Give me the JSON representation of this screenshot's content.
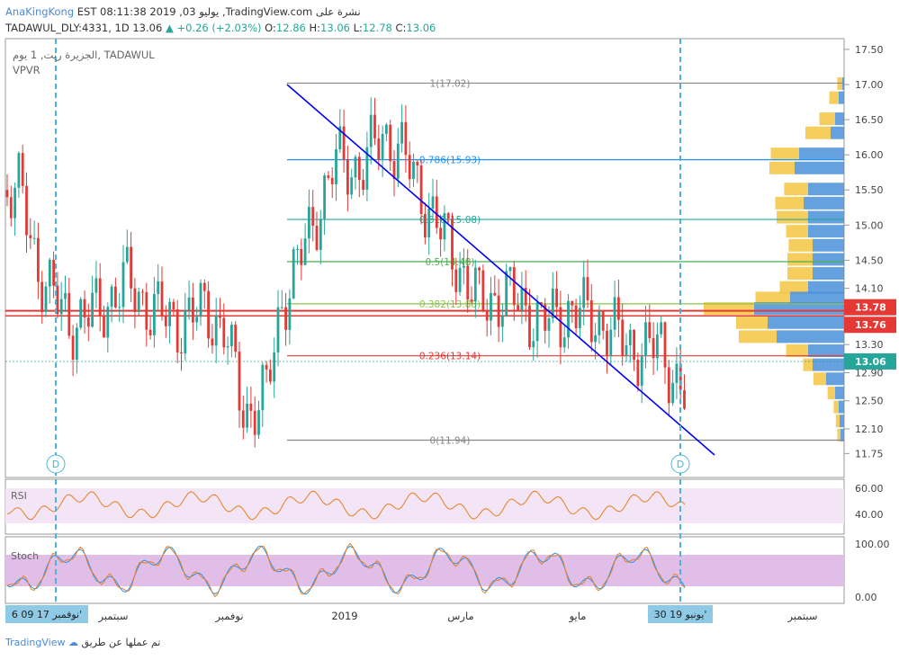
{
  "header": {
    "line1_left": "AnaKingKong",
    "line1_right": "EST 08:11:38 2019 ,يوليو 03 ,TradingView.com نشرة على",
    "symbol": "TADAWUL_DLY:4331, 1D",
    "last": "13.06",
    "change": "+0.26 (+2.03%)",
    "ohlc_labels": [
      "O:",
      "H:",
      "L:",
      "C:"
    ],
    "ohlc_values": [
      "12.86",
      "13.06",
      "12.78",
      "13.06"
    ]
  },
  "legend": {
    "title": "الجزيرة ريت, 1 يوم, TADAWUL",
    "indicator": "VPVR"
  },
  "price_axis": {
    "ticks": [
      "17.50",
      "17.00",
      "16.50",
      "16.00",
      "15.50",
      "15.00",
      "14.50",
      "14.10",
      "13.30",
      "12.90",
      "12.50",
      "12.10",
      "11.75"
    ],
    "badges": [
      {
        "label": "13.78",
        "color": "#e53935"
      },
      {
        "label": "13.76",
        "color": "#e53935"
      },
      {
        "label": "13.06",
        "color": "#26a69a"
      }
    ]
  },
  "fib_labels": [
    "1(17.02)",
    "0.786(15.93)",
    "0.618(15.08)",
    "0.5(14.48)",
    "0.382(13.88)",
    "0.236(13.14)",
    "0(11.94)"
  ],
  "rsi": {
    "label": "RSI",
    "ticks": [
      "60.00",
      "40.00"
    ]
  },
  "stoch": {
    "label": "Stoch",
    "ticks": [
      "100.00",
      "0.00"
    ]
  },
  "time_axis": {
    "labels": [
      "سبتمبر",
      "نوفمبر",
      "2019",
      "مارس",
      "مايو",
      "سبتمبر"
    ],
    "badge_left": "6 09 نوفمبر 17'",
    "badge_right": "30 يونيو 19'"
  },
  "markers": [
    "D",
    "D"
  ],
  "footer": {
    "brand": "TradingView",
    "text": "تم عملها عن طريق"
  },
  "colors": {
    "up": "#26a69a",
    "down": "#e53935",
    "fib_blue": "#2196f3",
    "fib_green": "#26a69a",
    "trend": "#0000ff",
    "rsi": "#e67e22",
    "rsi_bg": "#f3e5f5",
    "stoch_bg": "#e1bee7"
  },
  "chart_data": {
    "type": "candlestick",
    "symbol": "TADAWUL_DLY:4331",
    "interval": "1D",
    "ylim": [
      11.6,
      17.7
    ],
    "x_range": [
      "2017-08-01",
      "2019-10-20"
    ],
    "ohlc_trend": [
      [
        "2017-08-15",
        15.5
      ],
      [
        "2017-09-01",
        14.4
      ],
      [
        "2017-10-01",
        13.6
      ],
      [
        "2017-11-01",
        13.8
      ],
      [
        "2017-11-25",
        14.2
      ],
      [
        "2017-12-20",
        13.8
      ],
      [
        "2018-01-15",
        13.6
      ],
      [
        "2018-02-10",
        13.8
      ],
      [
        "2018-03-01",
        13.5
      ],
      [
        "2018-03-20",
        12.3
      ],
      [
        "2018-04-10",
        12.6
      ],
      [
        "2018-04-25",
        13.9
      ],
      [
        "2018-05-20",
        14.8
      ],
      [
        "2018-06-15",
        15.9
      ],
      [
        "2018-07-10",
        15.8
      ],
      [
        "2018-08-01",
        16.3
      ],
      [
        "2018-08-20",
        16.0
      ],
      [
        "2018-09-15",
        15.2
      ],
      [
        "2018-10-10",
        14.5
      ],
      [
        "2018-11-01",
        13.9
      ],
      [
        "2018-12-01",
        14.0
      ],
      [
        "2019-01-01",
        13.6
      ],
      [
        "2019-02-01",
        13.8
      ],
      [
        "2019-03-01",
        13.6
      ],
      [
        "2019-03-25",
        13.3
      ],
      [
        "2019-04-10",
        13.2
      ],
      [
        "2019-04-25",
        13.3
      ],
      [
        "2019-05-10",
        12.8
      ],
      [
        "2019-05-25",
        12.4
      ],
      [
        "2019-06-10",
        12.0
      ],
      [
        "2019-06-20",
        12.4
      ],
      [
        "2019-06-30",
        12.9
      ],
      [
        "2019-07-03",
        13.06
      ]
    ],
    "fibonacci": [
      {
        "level": 1,
        "price": 17.02
      },
      {
        "level": 0.786,
        "price": 15.93
      },
      {
        "level": 0.618,
        "price": 15.08
      },
      {
        "level": 0.5,
        "price": 14.48
      },
      {
        "level": 0.382,
        "price": 13.88
      },
      {
        "level": 0.236,
        "price": 13.14
      },
      {
        "level": 0,
        "price": 11.94
      }
    ],
    "horizontal_lines": [
      13.78,
      13.76,
      13.14
    ],
    "trendline": [
      [
        "2018-08-20",
        17.02
      ],
      [
        "2019-09-10",
        11.82
      ]
    ],
    "rsi_ticks": [
      60,
      40
    ],
    "stoch_ticks": [
      100,
      0
    ]
  }
}
